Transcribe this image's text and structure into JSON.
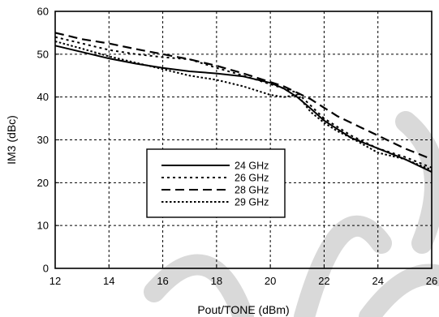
{
  "chart_data": {
    "type": "line",
    "xlabel": "Pout/TONE (dBm)",
    "ylabel": "IM3 (dBc)",
    "xlim": [
      12,
      26
    ],
    "ylim": [
      0,
      60
    ],
    "xticks": [
      12,
      14,
      16,
      18,
      20,
      22,
      24,
      26
    ],
    "yticks": [
      0,
      10,
      20,
      30,
      40,
      50,
      60
    ],
    "grid": true,
    "legend_position": "lower-left",
    "series": [
      {
        "name": "24 GHz",
        "style": "solid",
        "x": [
          12,
          13,
          14,
          15,
          16,
          17,
          18,
          19,
          20,
          20.5,
          21,
          21.5,
          22,
          22.5,
          23,
          24,
          25,
          26
        ],
        "y": [
          52,
          50.5,
          49,
          47.8,
          46.8,
          46,
          45.5,
          44.8,
          43.3,
          42,
          40,
          37.3,
          34.5,
          32.5,
          30.5,
          28,
          25.5,
          22.5
        ]
      },
      {
        "name": "26 GHz",
        "style": "dotted",
        "x": [
          12,
          13,
          14,
          15,
          16,
          17,
          18,
          19,
          20,
          20.5,
          21,
          21.5,
          22,
          22.5,
          23,
          24,
          25,
          26
        ],
        "y": [
          54,
          52.5,
          51,
          50,
          49.3,
          48.8,
          46.8,
          45,
          43,
          42,
          41,
          38,
          35,
          33,
          31,
          28,
          26,
          23.5
        ]
      },
      {
        "name": "28 GHz",
        "style": "dashed",
        "x": [
          12,
          13,
          14,
          15,
          16,
          17,
          18,
          19,
          20,
          20.5,
          21,
          21.5,
          22,
          22.5,
          23,
          24,
          25,
          26
        ],
        "y": [
          55,
          53.5,
          52.5,
          51.2,
          50,
          48.8,
          47.3,
          45.5,
          43.5,
          42.5,
          41,
          39.5,
          37.5,
          35.5,
          34,
          31,
          28,
          25.5
        ]
      },
      {
        "name": "29 GHz",
        "style": "dotted-dense",
        "x": [
          12,
          13,
          14,
          15,
          16,
          17,
          18,
          19,
          20,
          20.5,
          21,
          21.5,
          22,
          22.5,
          23,
          24,
          25,
          26
        ],
        "y": [
          53,
          51.3,
          49.5,
          48,
          46.5,
          45,
          44,
          42.5,
          40.5,
          40,
          40.5,
          36.5,
          34,
          32,
          30.5,
          27,
          25.5,
          23
        ]
      }
    ]
  }
}
